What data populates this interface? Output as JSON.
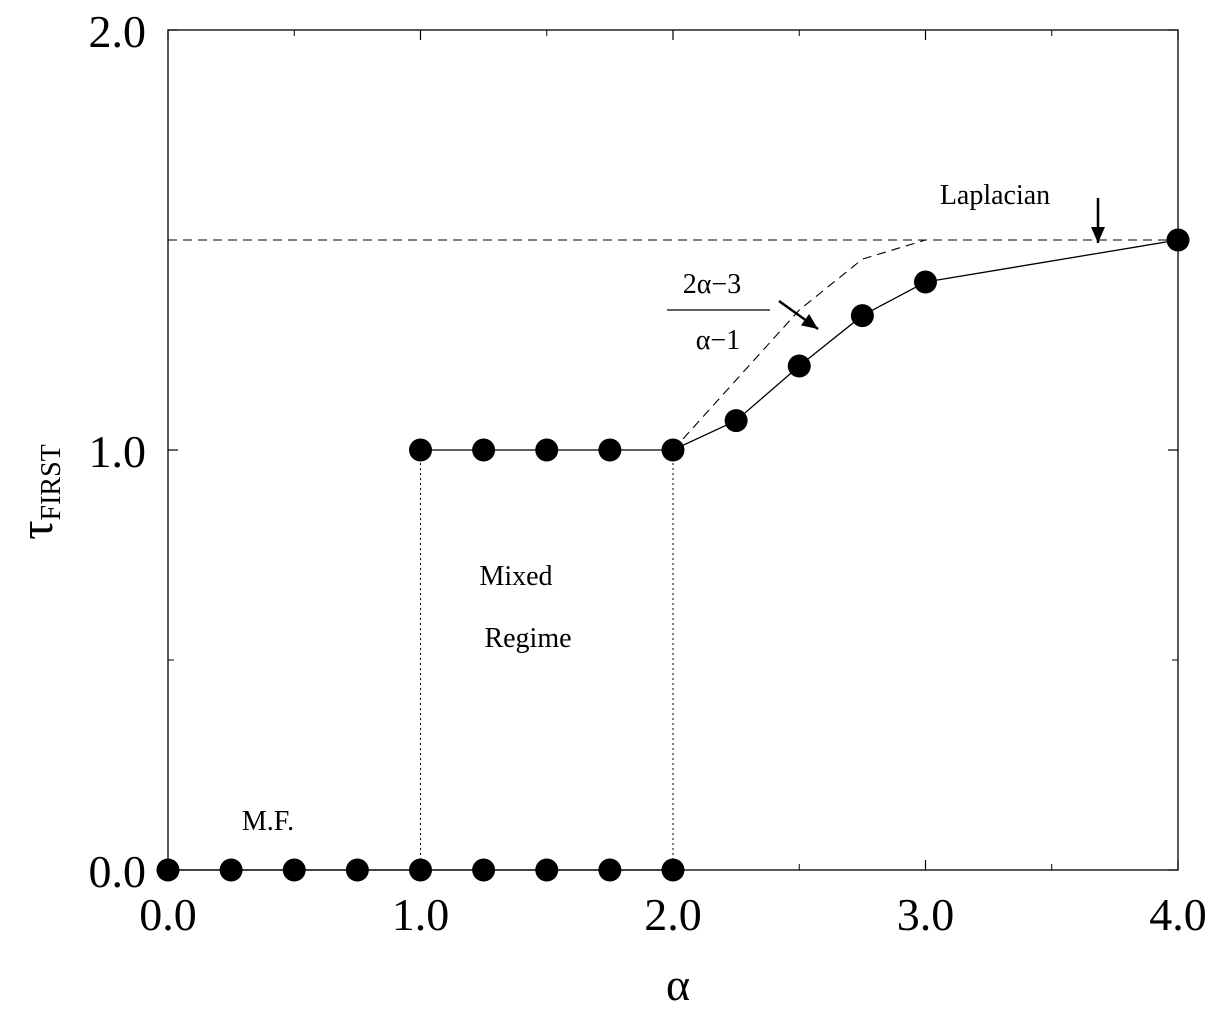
{
  "chart_data": {
    "type": "line",
    "xlabel": "α",
    "ylabel": "τ",
    "ylabel_sub": "FIRST",
    "xlim": [
      0,
      4
    ],
    "ylim": [
      0,
      2
    ],
    "x_ticks": [
      "0.0",
      "1.0",
      "2.0",
      "3.0",
      "4.0"
    ],
    "y_ticks": [
      "0.0",
      "1.0",
      "2.0"
    ],
    "x_tick_values": [
      0,
      1,
      2,
      3,
      4
    ],
    "y_tick_values": [
      0,
      1,
      2
    ],
    "x_minor_ticks": [
      0.5,
      1.5,
      2.5,
      3.5
    ],
    "y_minor_ticks": [
      0.5,
      1.5
    ],
    "grid": false,
    "series": [
      {
        "line": "solid",
        "marker": "filled-circle",
        "x": [
          0,
          0.25,
          0.5,
          0.75,
          1.0,
          1.25,
          1.5,
          1.75,
          2.0
        ],
        "y": [
          0,
          0,
          0,
          0,
          0,
          0,
          0,
          0,
          0
        ]
      },
      {
        "line": "solid",
        "marker": "filled-circle",
        "x": [
          1.0,
          1.25,
          1.5,
          1.75,
          2.0,
          2.25,
          2.5,
          2.75,
          3.0,
          4.0
        ],
        "y": [
          1.0,
          1.0,
          1.0,
          1.0,
          1.0,
          1.07,
          1.2,
          1.32,
          1.4,
          1.5
        ]
      }
    ],
    "reference_lines": [
      {
        "style": "dashed",
        "x": [
          0,
          4
        ],
        "y": [
          1.5,
          1.5
        ]
      },
      {
        "style": "dashed",
        "x": [
          2.0,
          2.25,
          2.5,
          2.75,
          3.0
        ],
        "y": [
          1.0,
          1.1667,
          1.3333,
          1.4545,
          1.5
        ]
      },
      {
        "style": "dotted",
        "x": [
          1.0,
          1.0
        ],
        "y": [
          0,
          1.0
        ]
      },
      {
        "style": "dotted",
        "x": [
          2.0,
          2.0
        ],
        "y": [
          0,
          1.0
        ]
      }
    ],
    "annotations": {
      "mf": "M.F.",
      "mixed_line1": "Mixed",
      "mixed_line2": "Regime",
      "laplacian": "Laplacian",
      "formula_numerator": "2α−3",
      "formula_denominator": "α−1"
    }
  }
}
